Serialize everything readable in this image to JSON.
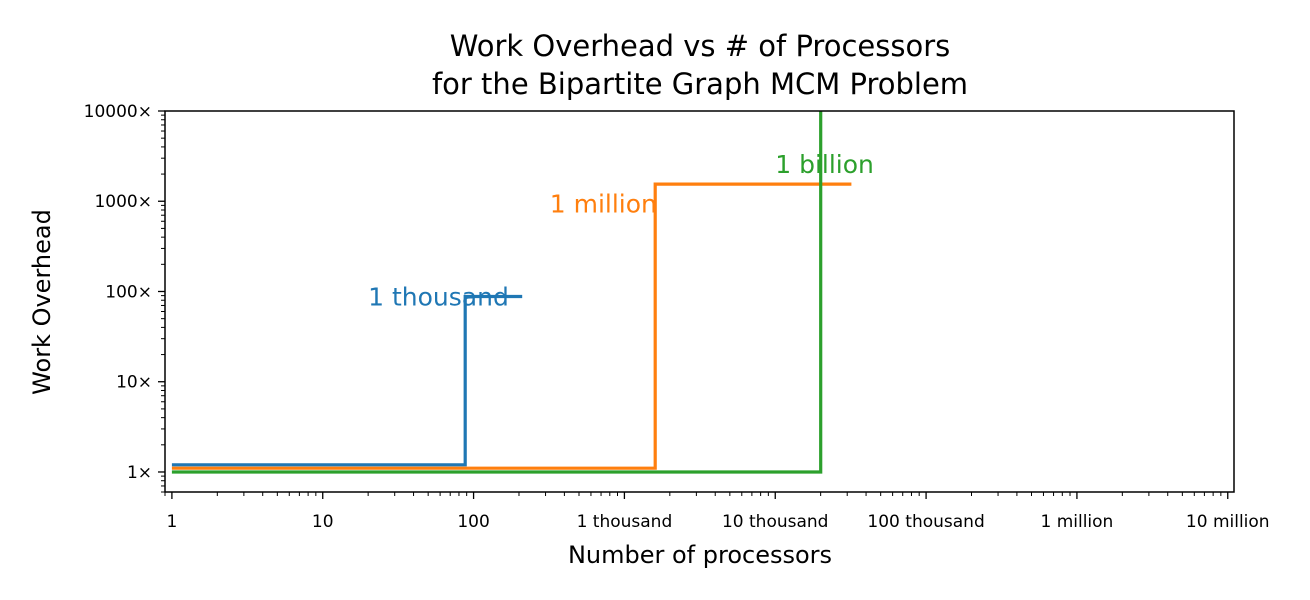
{
  "chart_data": {
    "type": "line",
    "title_line1": "Work Overhead vs # of Processors",
    "title_line2": "for the Bipartite Graph MCM Problem",
    "xlabel": "Number of processors",
    "ylabel": "Work Overhead",
    "x_scale": "log",
    "y_scale": "log",
    "xlim": [
      0.9,
      11000000
    ],
    "ylim": [
      0.6,
      10000
    ],
    "grid": false,
    "x_ticks": [
      {
        "value": 1,
        "label": "1"
      },
      {
        "value": 10,
        "label": "10"
      },
      {
        "value": 100,
        "label": "100"
      },
      {
        "value": 1000,
        "label": "1 thousand"
      },
      {
        "value": 10000,
        "label": "10 thousand"
      },
      {
        "value": 100000,
        "label": "100 thousand"
      },
      {
        "value": 1000000,
        "label": "1 million"
      },
      {
        "value": 10000000,
        "label": "10 million"
      }
    ],
    "y_ticks": [
      {
        "value": 1,
        "label": "1×"
      },
      {
        "value": 10,
        "label": "10×"
      },
      {
        "value": 100,
        "label": "100×"
      },
      {
        "value": 1000,
        "label": "1000×"
      },
      {
        "value": 10000,
        "label": "10000×"
      }
    ],
    "series": [
      {
        "name": "1 thousand",
        "color": "#1f77b4",
        "points": [
          [
            1,
            1.2
          ],
          [
            88,
            1.2
          ],
          [
            88,
            88
          ],
          [
            210,
            88
          ]
        ],
        "label_at": [
          20,
          88
        ]
      },
      {
        "name": "1 million",
        "color": "#ff7f0e",
        "points": [
          [
            1,
            1.1
          ],
          [
            1600,
            1.1
          ],
          [
            1600,
            1550
          ],
          [
            32000,
            1550
          ]
        ],
        "label_at": [
          320,
          950
        ]
      },
      {
        "name": "1 billion",
        "color": "#2ca02c",
        "points": [
          [
            1,
            1.0
          ],
          [
            20000,
            1.0
          ],
          [
            20000,
            10000
          ]
        ],
        "label_at": [
          10000,
          2600
        ]
      }
    ]
  }
}
